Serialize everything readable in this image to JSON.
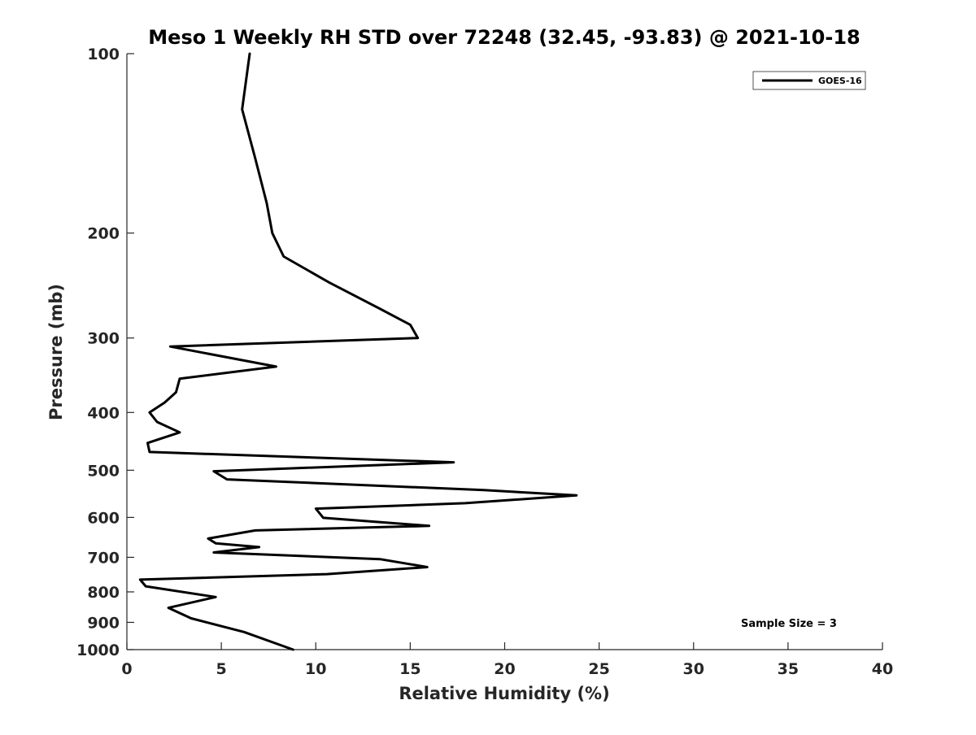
{
  "chart_data": {
    "type": "line",
    "title": "Meso 1 Weekly RH STD over 72248 (32.45, -93.83) @ 2021-10-18",
    "xlabel": "Relative Humidity (%)",
    "ylabel": "Pressure (mb)",
    "xlim": [
      0,
      40
    ],
    "ylim": [
      100,
      1000
    ],
    "y_scale": "log",
    "y_reversed": true,
    "xticks": [
      "0",
      "5",
      "10",
      "15",
      "20",
      "25",
      "30",
      "35",
      "40"
    ],
    "yticks": [
      "100",
      "200",
      "300",
      "400",
      "500",
      "600",
      "700",
      "800",
      "900",
      "1000"
    ],
    "grid": false,
    "legend": {
      "position": "top-right",
      "entries": [
        "GOES-16"
      ]
    },
    "annotation": "Sample Size = 3",
    "series": [
      {
        "name": "GOES-16",
        "color": "#000000",
        "points": [
          [
            6.5,
            100
          ],
          [
            6.1,
            124
          ],
          [
            6.8,
            150
          ],
          [
            7.4,
            178
          ],
          [
            7.7,
            200
          ],
          [
            8.3,
            219
          ],
          [
            10.7,
            242
          ],
          [
            13.5,
            269
          ],
          [
            15.0,
            285
          ],
          [
            15.4,
            300
          ],
          [
            2.3,
            310
          ],
          [
            7.9,
            335
          ],
          [
            2.8,
            351
          ],
          [
            2.6,
            370
          ],
          [
            2.0,
            385
          ],
          [
            1.2,
            400
          ],
          [
            1.6,
            415
          ],
          [
            2.8,
            432
          ],
          [
            1.1,
            450
          ],
          [
            1.2,
            466
          ],
          [
            17.3,
            485
          ],
          [
            4.6,
            502
          ],
          [
            5.3,
            518
          ],
          [
            18.9,
            540
          ],
          [
            23.8,
            551
          ],
          [
            17.9,
            568
          ],
          [
            10.0,
            580
          ],
          [
            10.4,
            601
          ],
          [
            16.0,
            620
          ],
          [
            6.8,
            631
          ],
          [
            4.3,
            651
          ],
          [
            4.7,
            663
          ],
          [
            7.0,
            673
          ],
          [
            4.6,
            687
          ],
          [
            13.4,
            705
          ],
          [
            15.9,
            727
          ],
          [
            10.6,
            747
          ],
          [
            0.7,
            763
          ],
          [
            1.0,
            783
          ],
          [
            4.7,
            816
          ],
          [
            2.2,
            851
          ],
          [
            3.4,
            886
          ],
          [
            6.2,
            934
          ],
          [
            8.8,
            1000
          ]
        ]
      }
    ]
  }
}
